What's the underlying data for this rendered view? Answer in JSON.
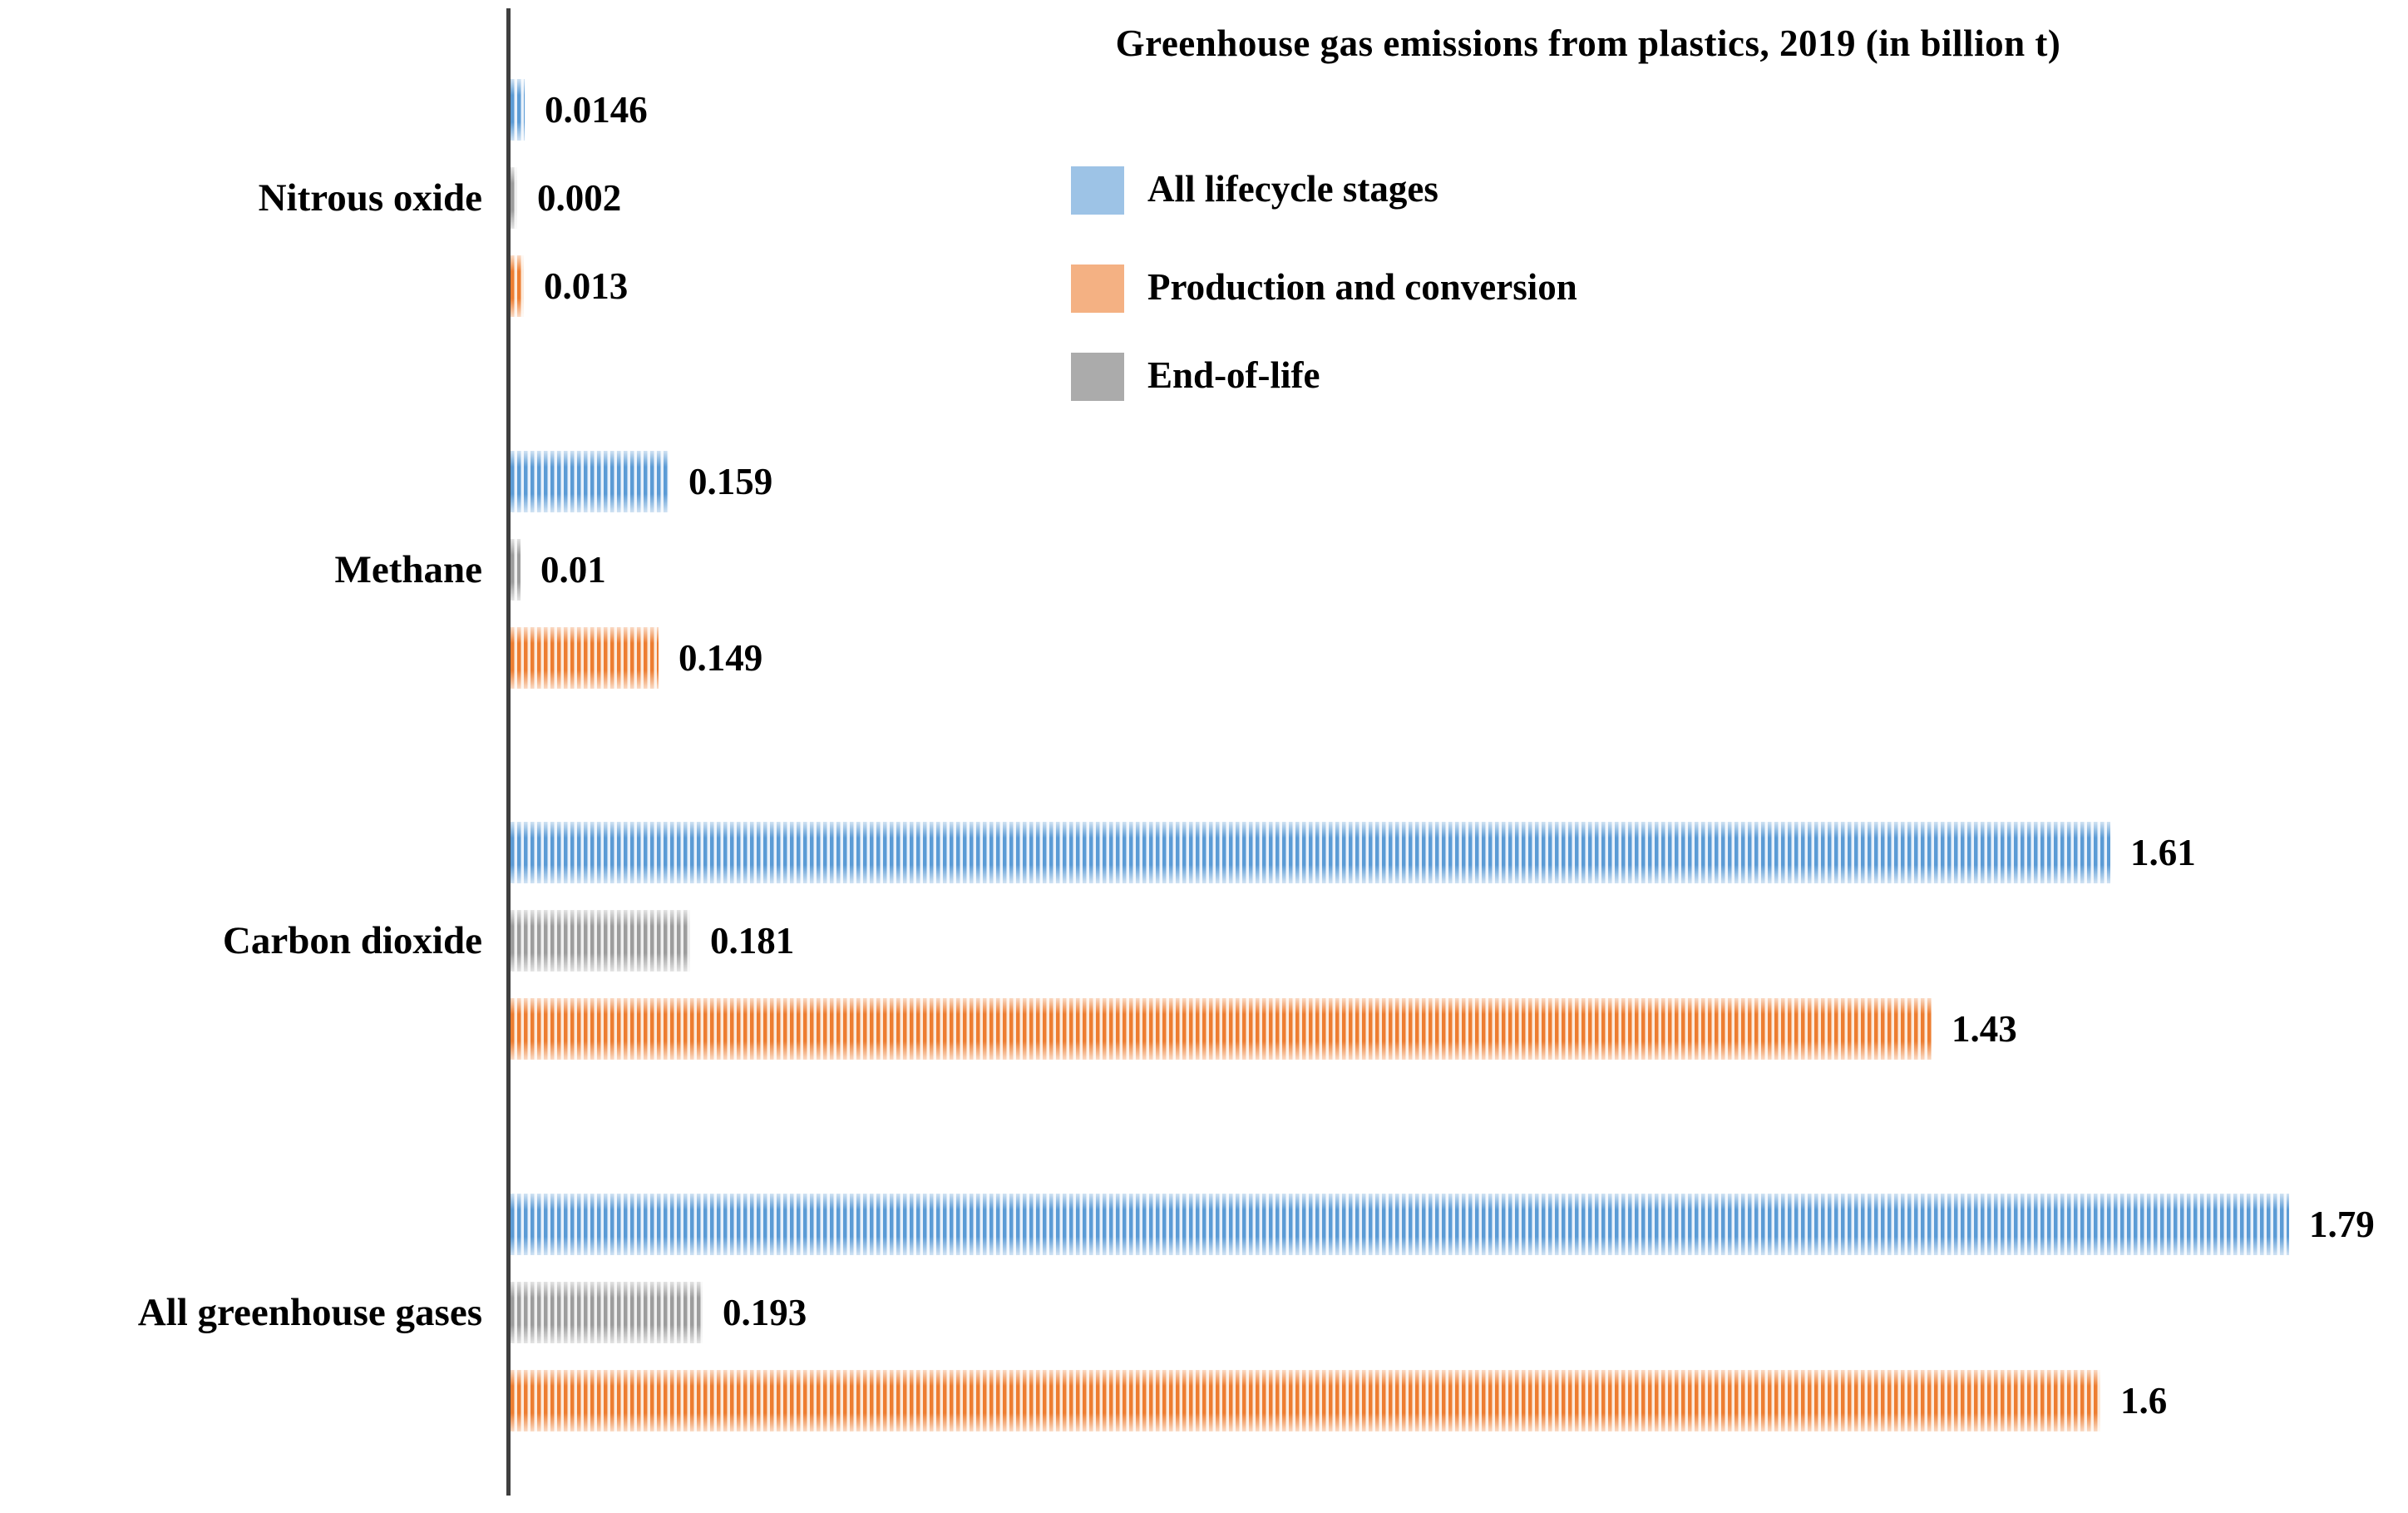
{
  "title": "Greenhouse gas emissions from plastics, 2019 (in billion t)",
  "chart_data": {
    "type": "bar",
    "orientation": "horizontal",
    "title": "Greenhouse gas emissions from plastics, 2019 (in billion t)",
    "categories": [
      "Nitrous oxide",
      "Methane",
      "Carbon dioxide",
      "All greenhouse gases"
    ],
    "series": [
      {
        "name": "All lifecycle stages",
        "stripe_color": "#5B9BD5",
        "stripe_light": "#E8F1FB",
        "legend_color": "#9DC3E6",
        "values": [
          0.0146,
          0.159,
          1.61,
          1.79
        ]
      },
      {
        "name": "Production and conversion",
        "stripe_color": "#ED7D31",
        "stripe_light": "#FCEADB",
        "legend_color": "#F4B183",
        "values": [
          0.013,
          0.149,
          1.43,
          1.6
        ]
      },
      {
        "name": "End-of-life",
        "stripe_color": "#9D9D9D",
        "stripe_light": "#EFEFEF",
        "legend_color": "#ABABAB",
        "values": [
          0.002,
          0.01,
          0.181,
          0.193
        ]
      }
    ],
    "value_labels_shown": true,
    "xlim": [
      0,
      1.9
    ],
    "grid": false,
    "legend_position": "top-center",
    "axis_color": "#3F3F3F",
    "background_color": "#FFFFFF"
  }
}
